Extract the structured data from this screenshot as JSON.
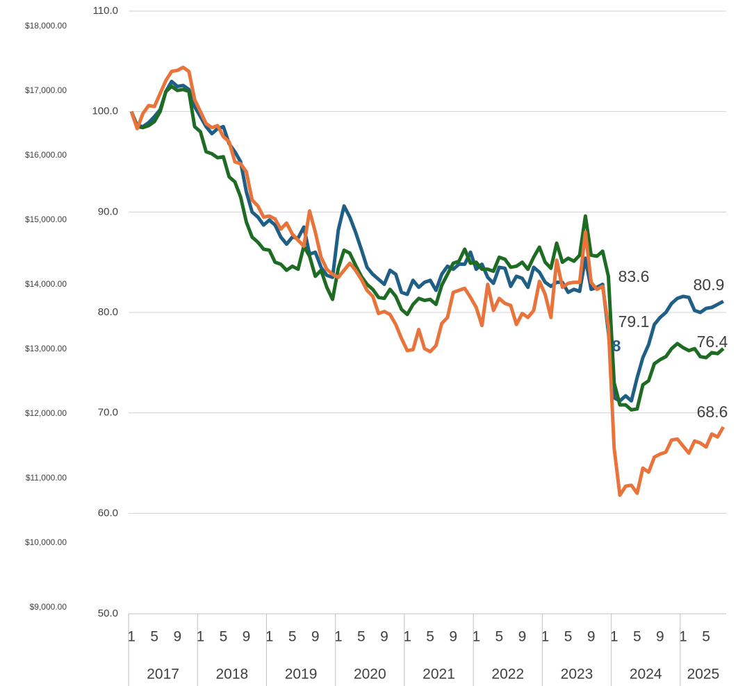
{
  "chart_data": {
    "type": "line",
    "categories": [
      "1",
      null,
      null,
      null,
      "5",
      null,
      null,
      null,
      "9",
      null,
      null,
      null,
      "1",
      null,
      null,
      null,
      "5",
      null,
      null,
      null,
      "9",
      null,
      null,
      null,
      "1",
      null,
      null,
      null,
      "5",
      null,
      null,
      null,
      "9",
      null,
      null,
      null,
      "1",
      null,
      null,
      null,
      "5",
      null,
      null,
      null,
      "9",
      null,
      null,
      null,
      "1",
      null,
      null,
      null,
      "5",
      null,
      null,
      null,
      "9",
      null,
      null,
      null,
      "1",
      null,
      null,
      null,
      "5",
      null,
      null,
      null,
      "9",
      null,
      null,
      null,
      "1",
      null,
      null,
      null,
      "5",
      null,
      null,
      null,
      "9",
      null,
      null,
      null,
      "1",
      null,
      null,
      null,
      "5",
      null,
      null,
      null,
      "9",
      null,
      null,
      null,
      "1",
      null,
      null,
      null,
      "5",
      null,
      null,
      null
    ],
    "years": [
      "2017",
      "2018",
      "2019",
      "2020",
      "2021",
      "2022",
      "2023",
      "2024",
      "2025"
    ],
    "series": [
      {
        "color": "#1f5f86",
        "values": [
          100,
          98.6,
          98.5,
          98.9,
          99.5,
          100.2,
          102,
          103,
          102.5,
          102.6,
          102.2,
          100.5,
          99.5,
          98.5,
          97.8,
          98.3,
          98.5,
          96.8,
          96,
          95,
          92,
          90,
          89.5,
          88.7,
          89.2,
          88.7,
          87.5,
          86.8,
          87.5,
          87.4,
          88.5,
          85.8,
          86,
          84.5,
          83.7,
          83.5,
          88.2,
          90.6,
          89.5,
          88,
          86.3,
          84.5,
          83.8,
          83.3,
          82.8,
          84.2,
          83.8,
          82,
          81.8,
          83.2,
          82.5,
          83,
          83.2,
          82.2,
          83.8,
          84.6,
          84.3,
          84.8,
          84.8,
          86,
          84.3,
          84.8,
          83.5,
          82.9,
          84.5,
          84.4,
          82.6,
          83.6,
          83.4,
          82.5,
          84.5,
          84,
          83,
          82.6,
          83,
          83,
          82,
          82.3,
          82.1,
          85.4,
          82.3,
          82.5,
          82.8,
          78,
          71.5,
          71.2,
          71.7,
          71.2,
          73.5,
          75.5,
          76.8,
          78.8,
          79.5,
          80,
          80.9,
          81.4,
          81.6,
          81.5,
          80.2,
          80,
          80.4,
          80.5,
          80.8,
          81.1
        ]
      },
      {
        "color": "#1e6b23",
        "values": [
          100,
          98.5,
          98.4,
          98.6,
          99,
          100,
          102,
          102.5,
          102.1,
          102.2,
          102,
          98.5,
          98,
          96,
          95.8,
          95.4,
          95.5,
          93.5,
          93,
          91.5,
          89,
          87.5,
          87,
          86.3,
          86.2,
          85,
          84.8,
          84.2,
          84.6,
          84.3,
          86.6,
          85.6,
          83.6,
          84.2,
          82.5,
          81.3,
          84.4,
          86.2,
          85.9,
          84.7,
          83.6,
          82.8,
          82.3,
          81.5,
          81.4,
          82.3,
          81.6,
          80.3,
          79.8,
          80.8,
          81.4,
          81.2,
          81.3,
          80.8,
          82.7,
          83.8,
          84.9,
          85.1,
          86.3,
          84.9,
          85,
          84.3,
          84.3,
          84.1,
          85.5,
          85.3,
          84.5,
          84.6,
          85,
          84.3,
          85.5,
          86.5,
          85,
          84.4,
          86.9,
          85,
          85.4,
          85.1,
          85.7,
          89.6,
          85.7,
          85.6,
          86.1,
          83.6,
          73,
          70.8,
          70.8,
          70.3,
          70.4,
          72.8,
          73.2,
          74.9,
          75.3,
          75.6,
          76.4,
          76.9,
          76.5,
          76.2,
          76.4,
          75.6,
          75.5,
          76,
          75.9,
          76.4
        ]
      },
      {
        "color": "#e8743b",
        "values": [
          100,
          98.3,
          99.8,
          100.6,
          100.5,
          101.8,
          103.1,
          104,
          104.1,
          104.4,
          104,
          101.2,
          100,
          98.8,
          98.4,
          98.6,
          97.5,
          97,
          95,
          94.8,
          94,
          91.2,
          90.6,
          89.5,
          89.6,
          89.3,
          88.3,
          88.9,
          87.8,
          87.2,
          86.6,
          90.1,
          88,
          85.5,
          84.3,
          83.8,
          83.5,
          84.2,
          84.9,
          84.2,
          83.3,
          82.2,
          81.6,
          79.9,
          80.1,
          79.8,
          78.8,
          77.4,
          76.2,
          76.3,
          78.3,
          76.4,
          76.1,
          76.7,
          78.9,
          79.5,
          82,
          82.2,
          82.4,
          81.5,
          80.5,
          78.7,
          82.8,
          80.2,
          81.4,
          80.9,
          80.7,
          78.8,
          79.9,
          79.5,
          80.2,
          83.1,
          81.8,
          79.5,
          85.2,
          82.5,
          82.9,
          83,
          83,
          88,
          83,
          82.3,
          82.6,
          78.6,
          66.5,
          61.8,
          62.7,
          62.8,
          62,
          64.5,
          64.1,
          65.6,
          65.9,
          66.1,
          67.3,
          67.4,
          66.7,
          66,
          67.2,
          67,
          66.6,
          67.9,
          67.6,
          68.6
        ]
      }
    ],
    "ylim": [
      50,
      110
    ],
    "yticks": [
      {
        "value": 50,
        "label": "50.0"
      },
      {
        "value": 60,
        "label": "60.0"
      },
      {
        "value": 70,
        "label": "70.0"
      },
      {
        "value": 80,
        "label": "80.0"
      },
      {
        "value": 90,
        "label": "90.0"
      },
      {
        "value": 100,
        "label": "100.0"
      },
      {
        "value": 110,
        "label": "110.0"
      }
    ],
    "y2lim": [
      8903,
      18237
    ],
    "y2ticks": [
      {
        "value": 9000,
        "label": "$9,000.00"
      },
      {
        "value": 10000,
        "label": "$10,000.00"
      },
      {
        "value": 11000,
        "label": "$11,000.00"
      },
      {
        "value": 12000,
        "label": "$12,000.00"
      },
      {
        "value": 13000,
        "label": "$13,000.00"
      },
      {
        "value": 14000,
        "label": "$14,000.00"
      },
      {
        "value": 15000,
        "label": "$15,000.00"
      },
      {
        "value": 16000,
        "label": "$16,000.00"
      },
      {
        "value": 17000,
        "label": "$17,000.00"
      },
      {
        "value": 18000,
        "label": "$18,000.00"
      }
    ],
    "grid": true,
    "annotations": [
      {
        "text": "83.6",
        "color": "#404040"
      },
      {
        "text": "80.9",
        "color": "#404040"
      },
      {
        "text": "79.1",
        "color": "#404040"
      },
      {
        "text": "8",
        "color": "#1f5f86"
      },
      {
        "text": "76.4",
        "color": "#404040"
      },
      {
        "text": "68.6",
        "color": "#404040"
      }
    ]
  }
}
